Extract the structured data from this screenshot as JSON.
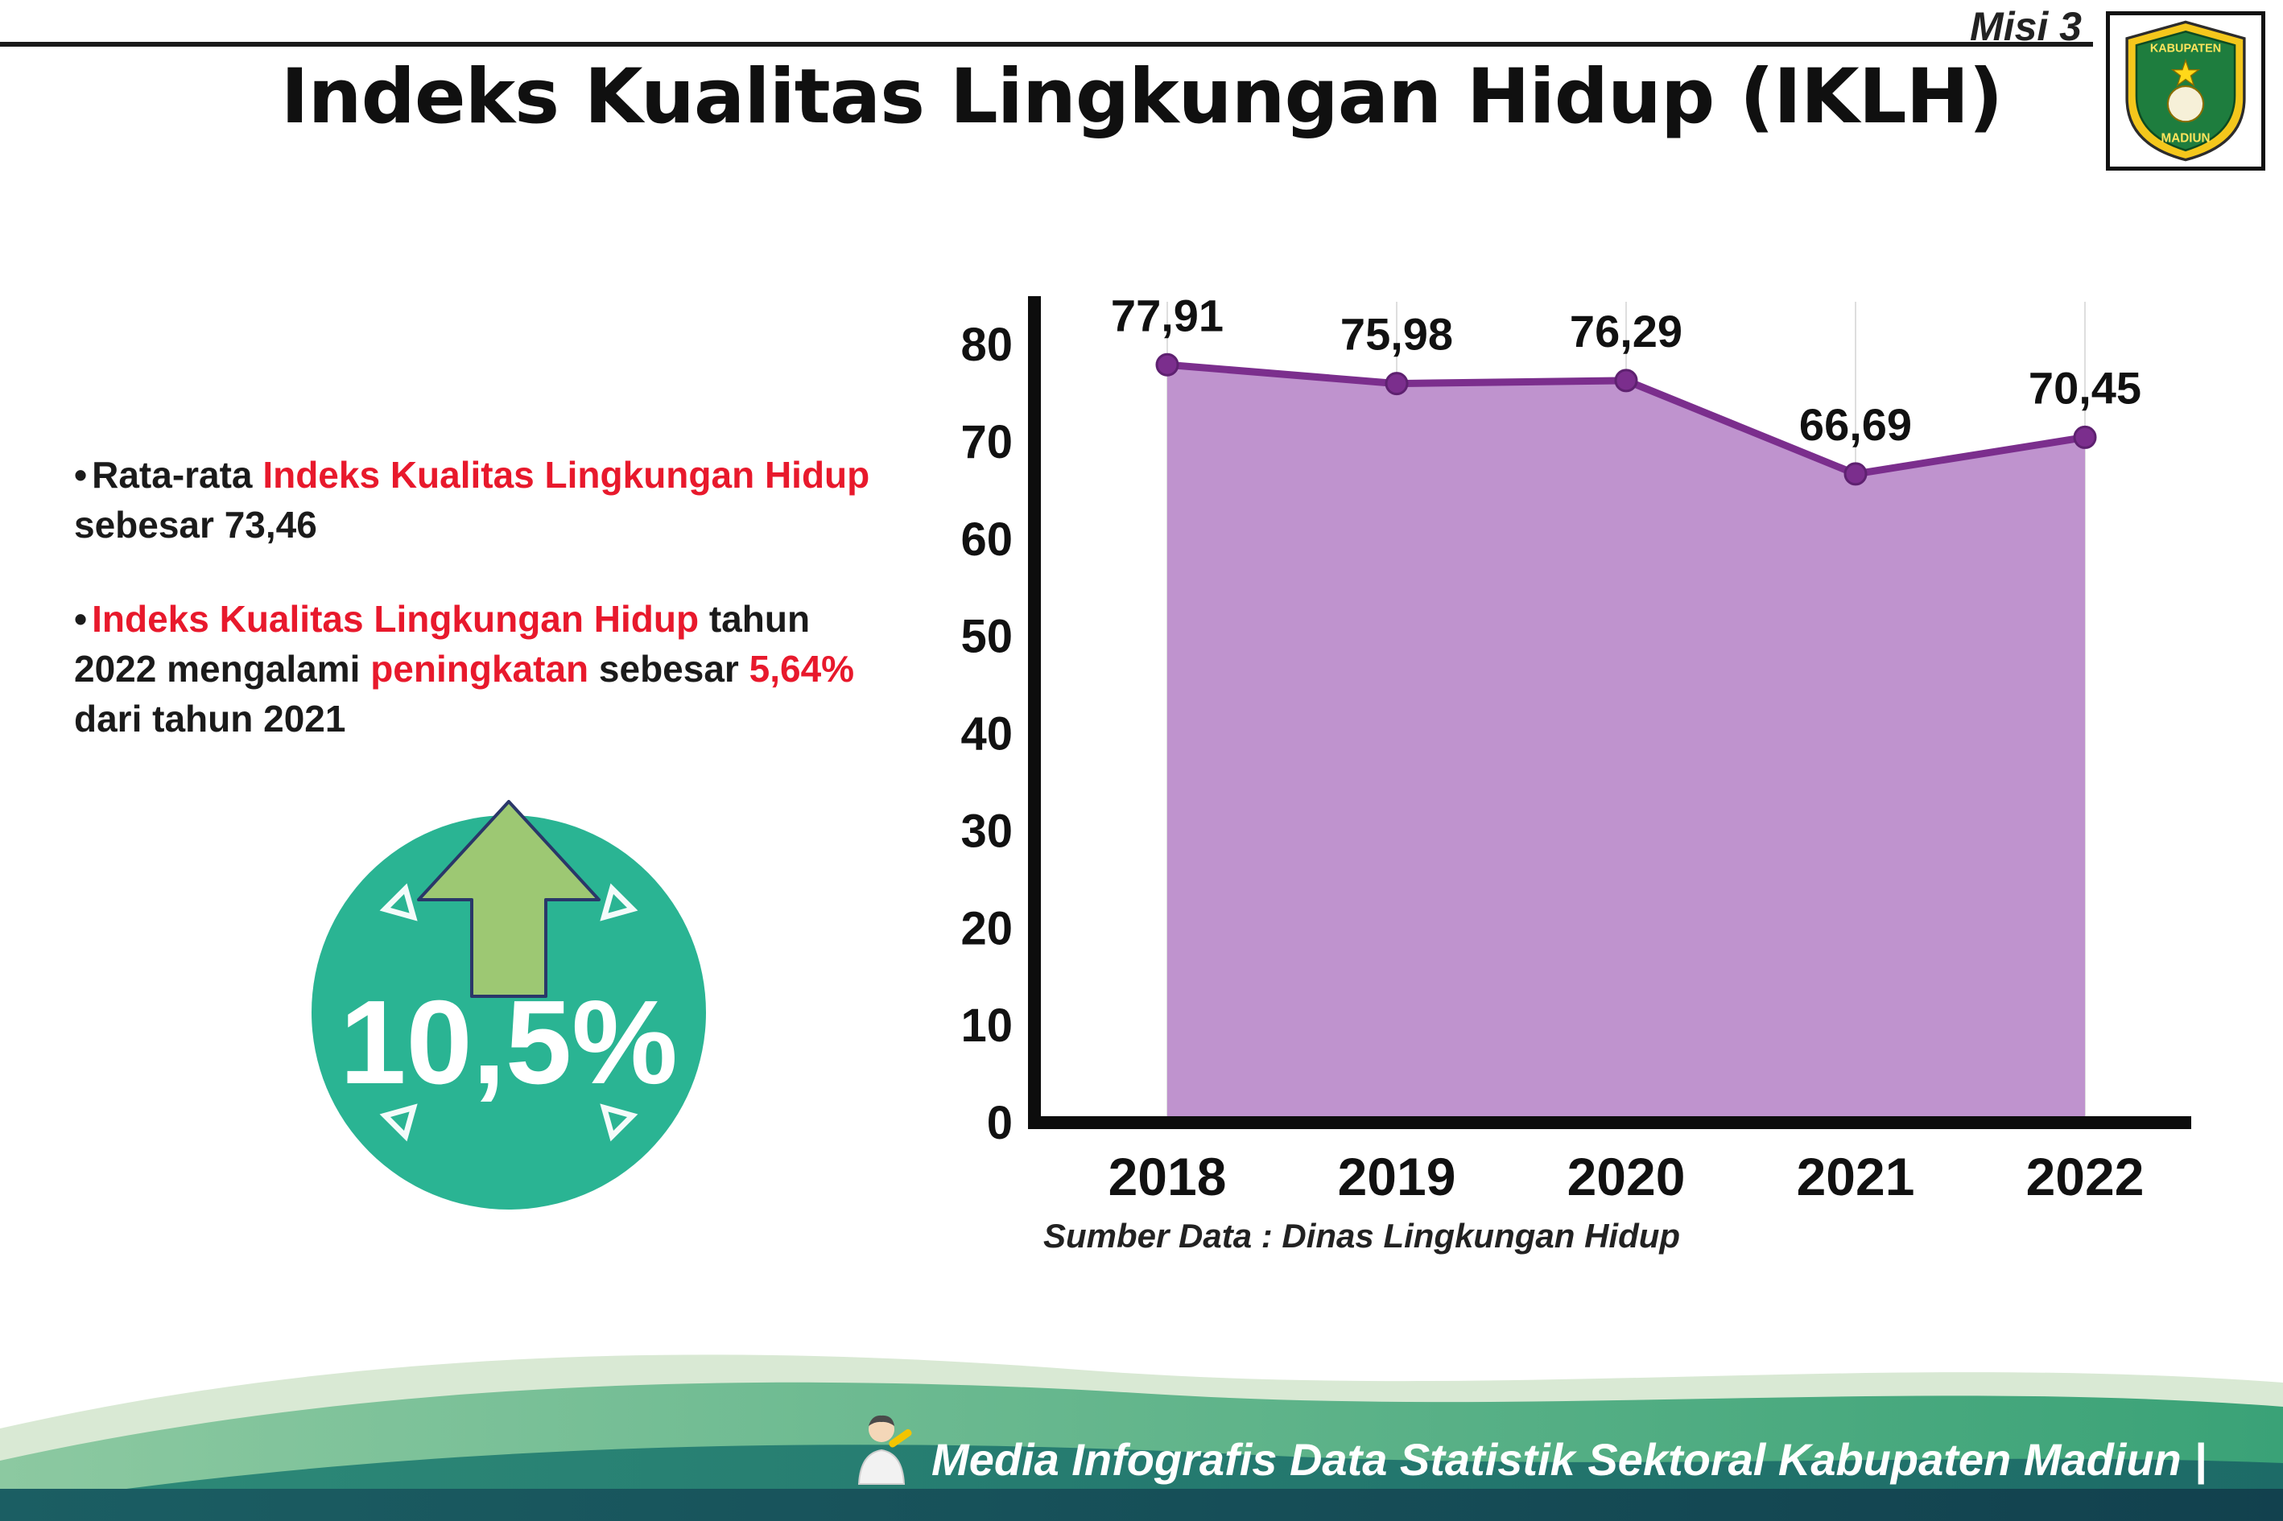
{
  "header": {
    "misi_label": "Misi 3",
    "title": "Indeks Kualitas Lingkungan Hidup (IKLH)",
    "logo": {
      "top_text": "KABUPATEN",
      "bottom_text": "MADIUN"
    }
  },
  "colors": {
    "red": "#e8192c",
    "teal_badge": "#2ab493",
    "arrow_green": "#9dc873",
    "area_fill": "#bf93ce",
    "line": "#7b2e8d",
    "footer_green": "#55ae7e",
    "footer_teal": "#2b7f6e",
    "footer_dark": "#184f57"
  },
  "bullets": {
    "b1": {
      "parts": [
        "Rata-rata ",
        "Indeks Kualitas Lingkungan Hidup",
        " sebesar 73,46"
      ]
    },
    "b2": {
      "parts": [
        "Indeks Kualitas Lingkungan Hidup",
        " tahun 2022 mengalami ",
        "peningkatan",
        " sebesar ",
        "5,64%",
        " dari tahun 2021"
      ]
    }
  },
  "badge": {
    "value": "10,5%"
  },
  "chart_data": {
    "type": "area",
    "title": "Indeks Kualitas Lingkungan Hidup (IKLH)",
    "categories": [
      "2018",
      "2019",
      "2020",
      "2021",
      "2022"
    ],
    "values": [
      77.91,
      75.98,
      76.29,
      66.69,
      70.45
    ],
    "value_labels": [
      "77,91",
      "75,98",
      "76,29",
      "66,69",
      "70,45"
    ],
    "ylim": [
      0,
      80
    ],
    "yticks": [
      0,
      10,
      20,
      30,
      40,
      50,
      60,
      70,
      80
    ],
    "xlabel": "",
    "ylabel": "",
    "legend": "none",
    "grid": "faint-vertical",
    "source": "Sumber Data : Dinas Lingkungan Hidup"
  },
  "footer": {
    "credit": "Media Infografis Data Statistik Sektoral Kabupaten Madiun |"
  }
}
